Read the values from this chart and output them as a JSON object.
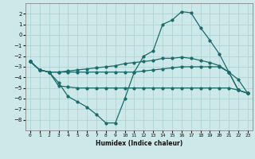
{
  "xlabel": "Humidex (Indice chaleur)",
  "x": [
    0,
    1,
    2,
    3,
    4,
    5,
    6,
    7,
    8,
    9,
    10,
    11,
    12,
    13,
    14,
    15,
    16,
    17,
    18,
    19,
    20,
    21,
    22,
    23
  ],
  "line1": [
    -2.5,
    -3.3,
    -3.5,
    -3.5,
    -3.5,
    -3.5,
    -3.5,
    -3.5,
    -3.5,
    -3.5,
    -3.5,
    -3.5,
    -3.4,
    -3.3,
    -3.2,
    -3.1,
    -3.0,
    -3.0,
    -3.0,
    -3.0,
    -3.0,
    -3.5,
    -5.2,
    -5.5
  ],
  "line2": [
    -2.5,
    -3.3,
    -3.5,
    -3.5,
    -3.4,
    -3.3,
    -3.2,
    -3.1,
    -3.0,
    -2.9,
    -2.7,
    -2.6,
    -2.5,
    -2.4,
    -2.2,
    -2.2,
    -2.1,
    -2.2,
    -2.4,
    -2.6,
    -2.9,
    -3.5,
    -5.2,
    -5.5
  ],
  "line3": [
    -2.5,
    -3.3,
    -3.5,
    -4.5,
    -5.8,
    -6.3,
    -6.8,
    -7.5,
    -8.3,
    -8.3,
    -6.0,
    -3.5,
    -2.0,
    -1.5,
    1.0,
    1.4,
    2.2,
    2.1,
    0.7,
    -0.5,
    -1.8,
    -3.5,
    -4.2,
    -5.5
  ],
  "line4": [
    -2.5,
    -3.3,
    -3.5,
    -4.8,
    -4.9,
    -5.0,
    -5.0,
    -5.0,
    -5.0,
    -5.0,
    -5.0,
    -5.0,
    -5.0,
    -5.0,
    -5.0,
    -5.0,
    -5.0,
    -5.0,
    -5.0,
    -5.0,
    -5.0,
    -5.0,
    -5.2,
    -5.5
  ],
  "bg_color": "#cde8e8",
  "line_color": "#1a6b6b",
  "grid_color": "#aacfcf",
  "ylim": [
    -9,
    3
  ],
  "yticks": [
    -8,
    -7,
    -6,
    -5,
    -4,
    -3,
    -2,
    -1,
    0,
    1,
    2
  ],
  "xticks": [
    0,
    1,
    2,
    3,
    4,
    5,
    6,
    7,
    8,
    9,
    10,
    11,
    12,
    13,
    14,
    15,
    16,
    17,
    18,
    19,
    20,
    21,
    22,
    23
  ]
}
